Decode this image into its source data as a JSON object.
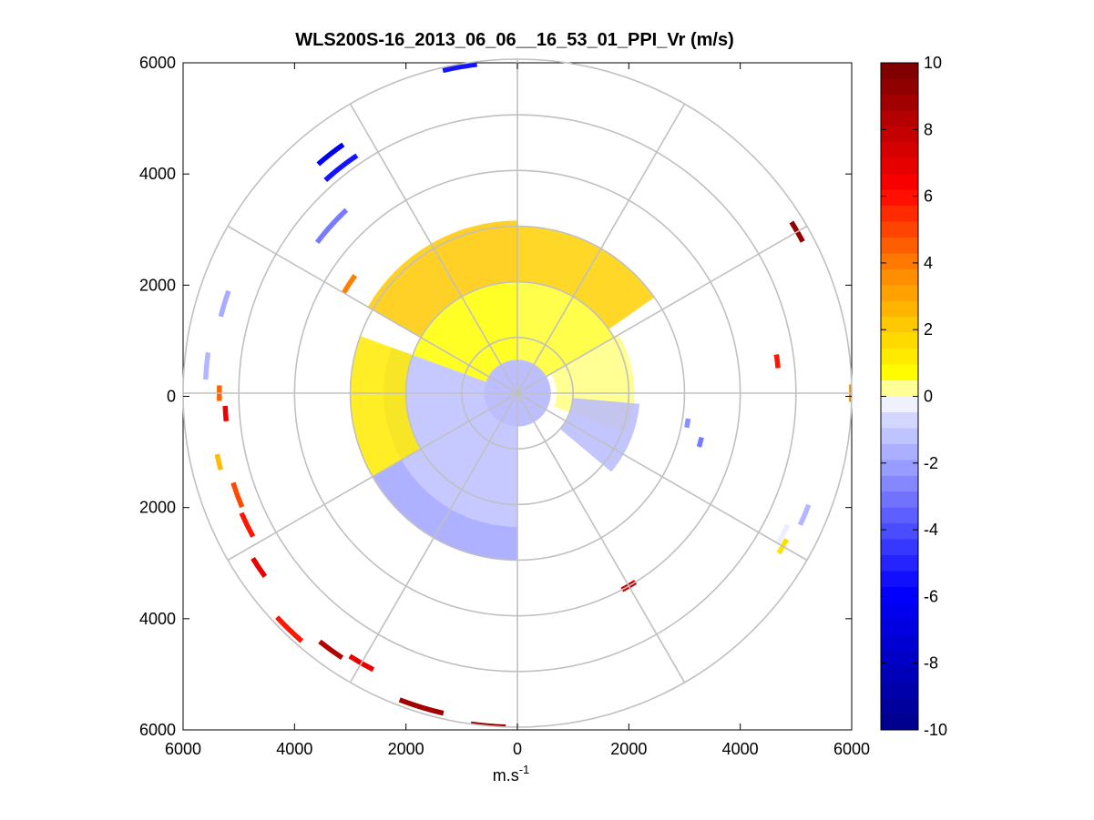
{
  "chart_data": {
    "type": "heatmap",
    "subtype": "polar-ppi",
    "title": "WLS200S-16_2013_06_06__16_53_01_PPI_Vr (m/s)",
    "xlabel_base": "m.s",
    "xlabel_sup": "-1",
    "ylabel": "",
    "xlim": [
      -6000,
      6000
    ],
    "ylim": [
      -6000,
      6000
    ],
    "x_ticks": [
      -6000,
      -4000,
      -2000,
      0,
      2000,
      4000,
      6000
    ],
    "x_tick_labels": [
      "6000",
      "4000",
      "2000",
      "0",
      "2000",
      "4000",
      "6000"
    ],
    "y_ticks": [
      6000,
      4000,
      2000,
      0,
      -2000,
      -4000,
      -6000
    ],
    "y_tick_labels": [
      "6000",
      "4000",
      "2000",
      "0",
      "2000",
      "4000",
      "6000"
    ],
    "polar_grid": {
      "rings_m": [
        1000,
        2000,
        3000,
        4000,
        5000,
        6000
      ],
      "spoke_step_deg": 30
    },
    "colorbar": {
      "label_values": [
        10,
        8,
        6,
        4,
        2,
        0,
        -2,
        -4,
        -6,
        -8,
        -10
      ],
      "tick_labels": [
        "10",
        "8",
        "6",
        "4",
        "2",
        "0",
        "-2",
        "-4",
        "-6",
        "-8",
        "-10"
      ],
      "range": [
        -10,
        10
      ],
      "colors": [
        "#00008f",
        "#0000ff",
        "#d8dcff",
        "#ffffff",
        "#ffff00",
        "#ffd000",
        "#ff8000",
        "#ff0000",
        "#800000"
      ]
    },
    "sectors": [
      {
        "from_deg": 290,
        "to_deg": 360,
        "r_min": 600,
        "r_max": 2000,
        "value": 0.6
      },
      {
        "from_deg": 300,
        "to_deg": 360,
        "r_min": 2000,
        "r_max": 3100,
        "value": 2.2
      },
      {
        "from_deg": 0,
        "to_deg": 60,
        "r_min": 600,
        "r_max": 2000,
        "value": 0.5
      },
      {
        "from_deg": 0,
        "to_deg": 55,
        "r_min": 2000,
        "r_max": 3000,
        "value": 2.0
      },
      {
        "from_deg": 60,
        "to_deg": 110,
        "r_min": 700,
        "r_max": 2100,
        "value": 0.3
      },
      {
        "from_deg": 95,
        "to_deg": 130,
        "r_min": 1000,
        "r_max": 2200,
        "value": -1.4
      },
      {
        "from_deg": 180,
        "to_deg": 290,
        "r_min": 600,
        "r_max": 2400,
        "value": -1.3
      },
      {
        "from_deg": 180,
        "to_deg": 240,
        "r_min": 2400,
        "r_max": 3000,
        "value": -2.0
      },
      {
        "from_deg": 240,
        "to_deg": 290,
        "r_min": 2000,
        "r_max": 3000,
        "value": 1.2
      },
      {
        "from_deg": 0,
        "to_deg": 360,
        "r_min": 0,
        "r_max": 600,
        "value": -1.6
      }
    ],
    "arcs": [
      {
        "az_deg": 350,
        "arc_deg": 6,
        "r": 5950,
        "value": -5.5
      },
      {
        "az_deg": 322,
        "arc_deg": 6,
        "r": 5450,
        "value": -6.5
      },
      {
        "az_deg": 322,
        "arc_deg": 8,
        "r": 5150,
        "value": -5.5
      },
      {
        "az_deg": 312,
        "arc_deg": 10,
        "r": 4500,
        "value": -3.0
      },
      {
        "az_deg": 303,
        "arc_deg": 6,
        "r": 3600,
        "value": 4.0
      },
      {
        "az_deg": 287,
        "arc_deg": 5,
        "r": 5500,
        "value": -1.8
      },
      {
        "az_deg": 275,
        "arc_deg": 5,
        "r": 5600,
        "value": -1.5
      },
      {
        "az_deg": 270,
        "arc_deg": 3,
        "r": 5350,
        "value": 4.5
      },
      {
        "az_deg": 266,
        "arc_deg": 3,
        "r": 5250,
        "value": 7.0
      },
      {
        "az_deg": 257,
        "arc_deg": 3,
        "r": 5500,
        "value": 2.5
      },
      {
        "az_deg": 250,
        "arc_deg": 5,
        "r": 5350,
        "value": 5.0
      },
      {
        "az_deg": 244,
        "arc_deg": 5,
        "r": 5400,
        "value": 6.0
      },
      {
        "az_deg": 236,
        "arc_deg": 4,
        "r": 5600,
        "value": 7.0
      },
      {
        "az_deg": 224,
        "arc_deg": 6,
        "r": 5900,
        "value": 6.0
      },
      {
        "az_deg": 216,
        "arc_deg": 5,
        "r": 5700,
        "value": 8.5
      },
      {
        "az_deg": 210,
        "arc_deg": 5,
        "r": 5600,
        "value": 7.0
      },
      {
        "az_deg": 197,
        "arc_deg": 8,
        "r": 5900,
        "value": 9.0
      },
      {
        "az_deg": 185,
        "arc_deg": 6,
        "r": 6000,
        "value": 9.5
      },
      {
        "az_deg": 60,
        "arc_deg": 4,
        "r": 5800,
        "value": 9.5
      },
      {
        "az_deg": 83,
        "arc_deg": 3,
        "r": 4700,
        "value": 6.0
      },
      {
        "az_deg": 90,
        "arc_deg": 3,
        "r": 6000,
        "value": 4.0
      },
      {
        "az_deg": 113,
        "arc_deg": 4,
        "r": 5600,
        "value": -1.5
      },
      {
        "az_deg": 118,
        "arc_deg": 4,
        "r": 5400,
        "value": -0.3
      },
      {
        "az_deg": 120,
        "arc_deg": 3,
        "r": 5500,
        "value": 1.5
      },
      {
        "az_deg": 150,
        "arc_deg": 4,
        "r": 4000,
        "value": 8.0
      },
      {
        "az_deg": 100,
        "arc_deg": 3,
        "r": 3100,
        "value": -2.5
      },
      {
        "az_deg": 105,
        "arc_deg": 3,
        "r": 3400,
        "value": -3.0
      }
    ]
  }
}
